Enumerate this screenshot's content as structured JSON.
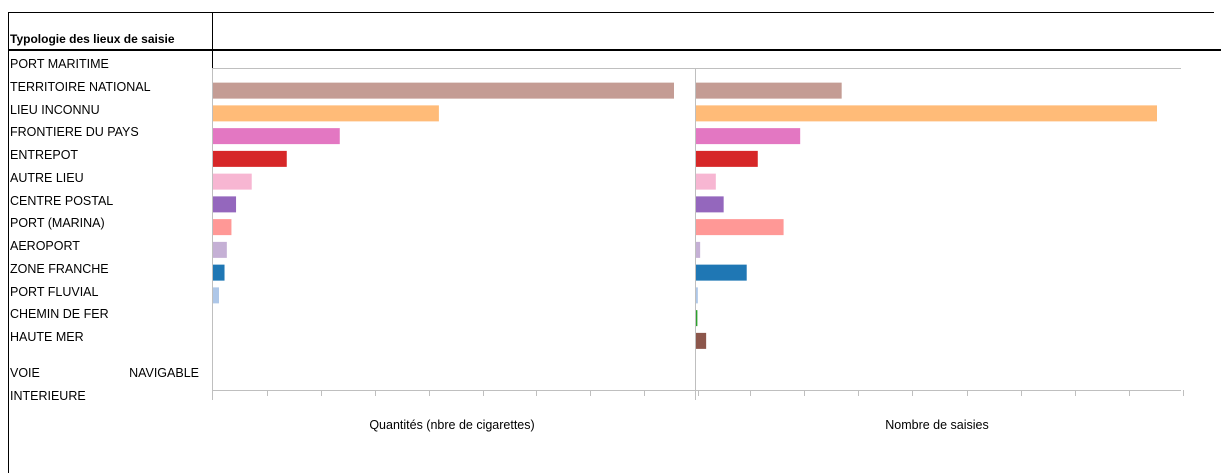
{
  "header": {
    "title": "Typologie des lieux de saisie"
  },
  "chart_data": {
    "type": "bar",
    "orientation": "horizontal",
    "categories": [
      "PORT MARITIME",
      "TERRITOIRE NATIONAL",
      "LIEU INCONNU",
      "FRONTIERE DU PAYS",
      "ENTREPOT",
      "AUTRE LIEU",
      "CENTRE POSTAL",
      "PORT (MARINA)",
      "AEROPORT",
      "ZONE FRANCHE",
      "PORT FLUVIAL",
      "CHEMIN DE FER",
      "HAUTE MER"
    ],
    "multiline_category": {
      "line1_left": "VOIE",
      "line1_right": "NAVIGABLE",
      "line2": "INTERIEURE"
    },
    "colors": [
      "#c49c94",
      "#c49c94",
      "#ffbb78",
      "#e377c2",
      "#d62728",
      "#f7b6d2",
      "#9467bd",
      "#ff9896",
      "#c5b0d5",
      "#1f77b4",
      "#aec7e8",
      "#2ca02c",
      "#8c564b"
    ],
    "grid": false,
    "panels": [
      {
        "xlabel": "Quantités (nbre de cigarettes)",
        "xlim": [
          0,
          100
        ],
        "values": [
          0,
          100,
          49,
          27.5,
          16,
          8.4,
          5,
          4,
          3,
          2.5,
          1.3,
          0,
          0
        ]
      },
      {
        "xlabel": "Nombre de saisies",
        "xlim": [
          0,
          100
        ],
        "values": [
          0,
          31.6,
          100,
          22.6,
          13.4,
          4.3,
          6,
          19,
          0.9,
          11,
          0.4,
          0.3,
          2.2
        ]
      }
    ]
  }
}
